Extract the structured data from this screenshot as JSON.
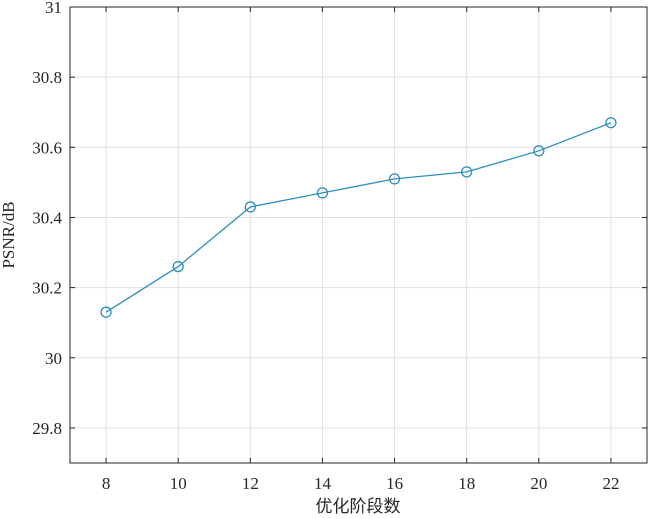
{
  "chart_data": {
    "type": "line",
    "title": "",
    "xlabel": "优化阶段数",
    "ylabel": "PSNR/dB",
    "x": [
      8,
      10,
      12,
      14,
      16,
      18,
      20,
      22
    ],
    "series": [
      {
        "values": [
          30.13,
          30.26,
          30.43,
          30.47,
          30.51,
          30.53,
          30.59,
          30.67
        ]
      }
    ],
    "xlim": [
      7,
      23
    ],
    "ylim": [
      29.7,
      31
    ],
    "xticks": [
      "8",
      "10",
      "12",
      "14",
      "16",
      "18",
      "20",
      "22"
    ],
    "yticks": [
      "29.8",
      "30",
      "30.2",
      "30.4",
      "30.6",
      "30.8",
      "31"
    ],
    "grid": true,
    "marker": "circle",
    "colors": {
      "line": "#2e8fbf",
      "grid": "#e0e0e0",
      "axis": "#262626"
    }
  }
}
